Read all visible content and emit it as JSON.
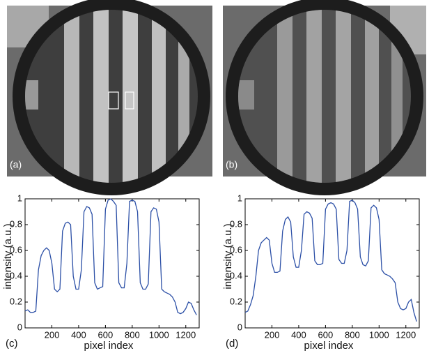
{
  "images": [
    {
      "label": "(a)"
    },
    {
      "label": "(b)"
    }
  ],
  "chart_data": [
    {
      "type": "line",
      "label": "(c)",
      "xlabel": "pixel index",
      "ylabel": "intensity (a.u.)",
      "xlim": [
        0,
        1300
      ],
      "ylim": [
        0,
        1
      ],
      "xticks": [
        200,
        400,
        600,
        800,
        1000,
        1200
      ],
      "yticks": [
        0,
        0.2,
        0.4,
        0.6,
        0.8,
        1
      ],
      "x": [
        0,
        20,
        40,
        60,
        80,
        100,
        120,
        140,
        160,
        180,
        200,
        220,
        240,
        260,
        280,
        300,
        320,
        340,
        360,
        380,
        400,
        420,
        440,
        460,
        480,
        500,
        520,
        540,
        560,
        580,
        600,
        620,
        640,
        660,
        680,
        700,
        720,
        740,
        760,
        780,
        800,
        820,
        840,
        860,
        880,
        900,
        920,
        940,
        960,
        980,
        1000,
        1020,
        1040,
        1060,
        1080,
        1100,
        1120,
        1140,
        1160,
        1180,
        1200,
        1220,
        1240,
        1260,
        1280
      ],
      "series": [
        {
          "color": "#2b4fa6",
          "values": [
            0.13,
            0.14,
            0.12,
            0.12,
            0.13,
            0.45,
            0.56,
            0.6,
            0.62,
            0.6,
            0.5,
            0.3,
            0.28,
            0.3,
            0.75,
            0.81,
            0.82,
            0.8,
            0.4,
            0.3,
            0.3,
            0.45,
            0.9,
            0.94,
            0.93,
            0.88,
            0.35,
            0.3,
            0.31,
            0.32,
            0.92,
            0.99,
            1.0,
            0.98,
            0.95,
            0.35,
            0.31,
            0.31,
            0.5,
            0.98,
            0.99,
            0.98,
            0.9,
            0.35,
            0.3,
            0.3,
            0.34,
            0.9,
            0.93,
            0.92,
            0.82,
            0.3,
            0.28,
            0.27,
            0.26,
            0.24,
            0.2,
            0.12,
            0.11,
            0.12,
            0.15,
            0.2,
            0.19,
            0.14,
            0.1
          ]
        }
      ]
    },
    {
      "type": "line",
      "label": "(d)",
      "xlabel": "pixel index",
      "ylabel": "intensity (a.u.)",
      "xlim": [
        0,
        1300
      ],
      "ylim": [
        0,
        1
      ],
      "xticks": [
        200,
        400,
        600,
        800,
        1000,
        1200
      ],
      "yticks": [
        0,
        0.2,
        0.4,
        0.6,
        0.8,
        1
      ],
      "x": [
        0,
        20,
        40,
        60,
        80,
        100,
        120,
        140,
        160,
        180,
        200,
        220,
        240,
        260,
        280,
        300,
        320,
        340,
        360,
        380,
        400,
        420,
        440,
        460,
        480,
        500,
        520,
        540,
        560,
        580,
        600,
        620,
        640,
        660,
        680,
        700,
        720,
        740,
        760,
        780,
        800,
        820,
        840,
        860,
        880,
        900,
        920,
        940,
        960,
        980,
        1000,
        1020,
        1040,
        1060,
        1080,
        1100,
        1120,
        1140,
        1160,
        1180,
        1200,
        1220,
        1240,
        1260,
        1280
      ],
      "series": [
        {
          "color": "#2b4fa6",
          "values": [
            0.12,
            0.13,
            0.18,
            0.25,
            0.4,
            0.6,
            0.66,
            0.68,
            0.7,
            0.68,
            0.5,
            0.43,
            0.43,
            0.44,
            0.75,
            0.84,
            0.86,
            0.82,
            0.55,
            0.47,
            0.47,
            0.6,
            0.88,
            0.9,
            0.89,
            0.85,
            0.52,
            0.49,
            0.49,
            0.5,
            0.92,
            0.96,
            0.97,
            0.96,
            0.92,
            0.53,
            0.5,
            0.5,
            0.6,
            0.98,
            0.99,
            0.97,
            0.92,
            0.55,
            0.49,
            0.48,
            0.52,
            0.93,
            0.95,
            0.93,
            0.84,
            0.45,
            0.42,
            0.41,
            0.4,
            0.38,
            0.35,
            0.2,
            0.15,
            0.14,
            0.15,
            0.2,
            0.22,
            0.12,
            0.05
          ]
        }
      ]
    }
  ]
}
